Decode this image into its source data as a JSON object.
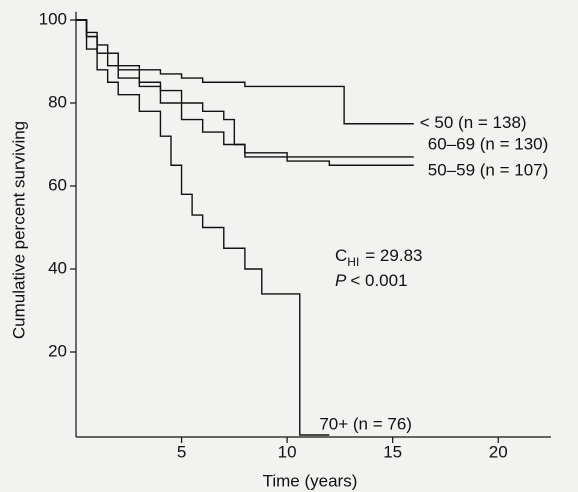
{
  "chart_data": {
    "type": "line",
    "step": true,
    "x_label": "Time (years)",
    "y_label": "Cumulative percent surviving",
    "xlim": [
      0,
      22.5
    ],
    "ylim": [
      0,
      102
    ],
    "xticks": [
      5,
      10,
      15,
      20
    ],
    "yticks": [
      20,
      40,
      60,
      80,
      100
    ],
    "color": "#111111",
    "series": [
      {
        "name": "< 50 (n = 138)",
        "x": [
          0,
          0.5,
          1,
          1.5,
          2,
          3,
          4,
          5,
          6,
          7,
          8,
          9,
          10,
          11,
          12.7,
          16
        ],
        "values": [
          100,
          97,
          94,
          92,
          89,
          88,
          87,
          86,
          85,
          85,
          84,
          84,
          84,
          84,
          75,
          75
        ]
      },
      {
        "name": "60–69 (n = 130)",
        "x": [
          0,
          0.5,
          1,
          2,
          3,
          4,
          5,
          6,
          7,
          7.5,
          8,
          9,
          10,
          12,
          14,
          16
        ],
        "values": [
          100,
          96,
          92,
          88,
          85,
          83,
          80,
          78,
          76,
          70,
          67,
          67,
          67,
          67,
          67,
          67
        ]
      },
      {
        "name": "50–59 (n = 107)",
        "x": [
          0,
          0.5,
          1,
          1.5,
          2,
          3,
          4,
          5,
          6,
          7,
          8,
          10,
          12,
          16
        ],
        "values": [
          100,
          96,
          92,
          89,
          86,
          84,
          80,
          76,
          73,
          70,
          68,
          66,
          65,
          65
        ]
      },
      {
        "name": "70+ (n = 76)",
        "x": [
          0,
          0.5,
          1,
          1.5,
          2,
          3,
          4,
          4.5,
          5,
          5.5,
          6,
          7,
          8,
          8.8,
          10.6,
          12
        ],
        "values": [
          100,
          93,
          88,
          85,
          82,
          78,
          72,
          65,
          58,
          53,
          50,
          45,
          40,
          34,
          0,
          0
        ]
      }
    ],
    "stat_symbol": "C",
    "stat_subscript": "HI",
    "stat_value": "= 29.83",
    "p_symbol": "P",
    "p_value": "< 0.001"
  }
}
